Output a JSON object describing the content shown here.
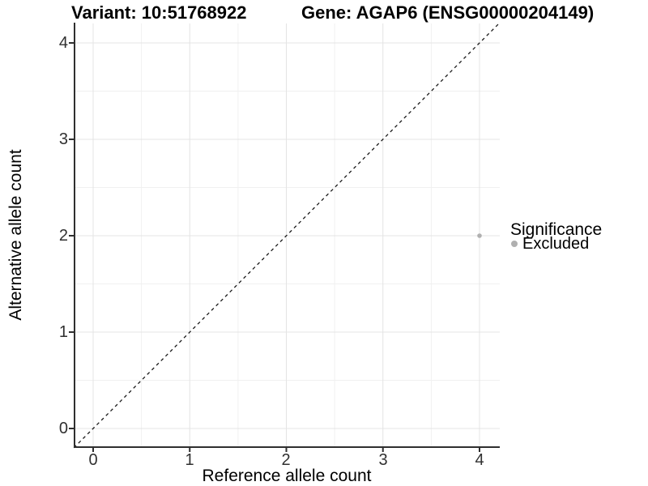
{
  "titles": {
    "variant": "Variant: 10:51768922",
    "gene": "Gene: AGAP6 (ENSG00000204149)"
  },
  "axes": {
    "xlabel": "Reference allele count",
    "ylabel": "Alternative allele count",
    "xticks": [
      "0",
      "1",
      "2",
      "3",
      "4"
    ],
    "yticks": [
      "0",
      "1",
      "2",
      "3",
      "4"
    ]
  },
  "legend": {
    "title": "Significance",
    "entries": [
      {
        "label": "Excluded",
        "color": "#b0b0b0"
      }
    ]
  },
  "chart_data": {
    "type": "scatter",
    "title": "Variant: 10:51768922 | Gene: AGAP6 (ENSG00000204149)",
    "xlabel": "Reference allele count",
    "ylabel": "Alternative allele count",
    "xlim": [
      -0.2,
      4.21
    ],
    "ylim": [
      -0.2,
      4.21
    ],
    "xticks": [
      0,
      1,
      2,
      3,
      4
    ],
    "yticks": [
      0,
      1,
      2,
      3,
      4
    ],
    "grid": "major+minor",
    "legend_position": "right",
    "series": [
      {
        "name": "Excluded",
        "type": "scatter",
        "color": "#b0b0b0",
        "points": [
          {
            "x": 4,
            "y": 2
          }
        ]
      }
    ],
    "reference_line": {
      "type": "identity y=x",
      "style": "dashed",
      "color": "#1a1a1a"
    }
  }
}
